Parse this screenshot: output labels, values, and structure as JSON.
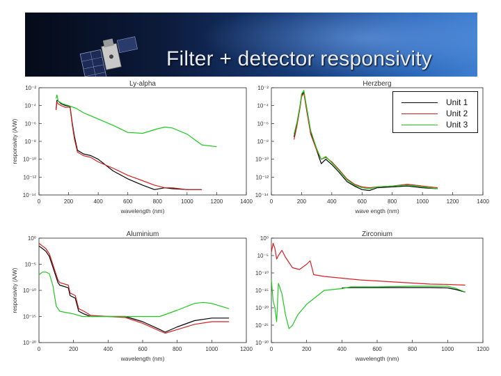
{
  "slide": {
    "title": "Filter + detector responsivity"
  },
  "colors": {
    "unit1": "#000000",
    "unit2": "#d42020",
    "unit3": "#1ec81e"
  },
  "legend": [
    {
      "label": "Unit 1",
      "color": "#000000"
    },
    {
      "label": "Unit 2",
      "color": "#d42020"
    },
    {
      "label": "Unit 3",
      "color": "#1ec81e"
    }
  ],
  "chart_data": [
    {
      "type": "line",
      "title": "Ly-alpha",
      "xlabel": "wavelength (nm)",
      "ylabel": "responsivity (A/W)",
      "xlim": [
        0,
        1400
      ],
      "ylim": [
        -14,
        -2
      ],
      "yscale": "log10",
      "xticks": [
        "0",
        "200",
        "400",
        "600",
        "800",
        "1000",
        "1200",
        "1400"
      ],
      "yticks": [
        "10⁻²",
        "10⁻⁴",
        "10⁻⁶",
        "10⁻⁸",
        "10⁻¹⁰",
        "10⁻¹²",
        "10⁻¹⁴"
      ],
      "series": [
        {
          "name": "Unit 1",
          "x": [
            115,
            121,
            130,
            150,
            180,
            210,
            225,
            240,
            260,
            300,
            350,
            400,
            500,
            600,
            700,
            780,
            850,
            900,
            1000,
            1100
          ],
          "log10": [
            -4.4,
            -3.4,
            -3.5,
            -3.8,
            -4.0,
            -4.1,
            -6.0,
            -7.5,
            -9.0,
            -9.4,
            -9.6,
            -10.0,
            -11.3,
            -12.2,
            -12.9,
            -13.4,
            -13.2,
            -13.3,
            -13.4,
            -13.4
          ]
        },
        {
          "name": "Unit 2",
          "x": [
            115,
            121,
            130,
            150,
            180,
            210,
            225,
            240,
            260,
            300,
            350,
            400,
            500,
            600,
            700,
            780,
            850,
            900,
            1000,
            1100
          ],
          "log10": [
            -4.5,
            -3.6,
            -3.8,
            -4.0,
            -4.2,
            -4.2,
            -6.2,
            -7.8,
            -9.2,
            -9.6,
            -9.8,
            -10.3,
            -11.0,
            -11.8,
            -12.4,
            -12.9,
            -13.2,
            -13.2,
            -13.4,
            -13.4
          ]
        },
        {
          "name": "Unit 3",
          "x": [
            115,
            121,
            130,
            160,
            200,
            250,
            300,
            400,
            500,
            600,
            700,
            800,
            850,
            900,
            1000,
            1050,
            1100,
            1200
          ],
          "log10": [
            -3.2,
            -2.8,
            -3.5,
            -3.8,
            -4.0,
            -4.3,
            -4.8,
            -5.5,
            -6.2,
            -7.0,
            -7.1,
            -6.6,
            -6.4,
            -6.5,
            -7.2,
            -7.8,
            -8.4,
            -8.6
          ]
        }
      ]
    },
    {
      "type": "line",
      "title": "Herzberg",
      "xlabel": "wave ength (nm)",
      "ylabel": "",
      "xlim": [
        0,
        1400
      ],
      "ylim": [
        -14,
        -2
      ],
      "yscale": "log10",
      "xticks": [
        "0",
        "200",
        "400",
        "600",
        "800",
        "1000",
        "1200",
        "1400"
      ],
      "yticks": [
        "10⁻²",
        "10⁻⁴",
        "10⁻⁶",
        "10⁻⁸",
        "10⁻¹⁰",
        "10⁻¹²",
        "10⁻¹⁴"
      ],
      "series": [
        {
          "name": "Unit 1",
          "x": [
            150,
            170,
            190,
            200,
            215,
            230,
            260,
            300,
            330,
            360,
            400,
            450,
            500,
            550,
            600,
            650,
            700,
            800,
            900,
            1000,
            1100
          ],
          "log10": [
            -7.5,
            -6.0,
            -4.0,
            -2.8,
            -2.5,
            -4.0,
            -7.0,
            -9.0,
            -10.5,
            -10.0,
            -10.6,
            -11.5,
            -12.5,
            -13.0,
            -13.4,
            -13.5,
            -13.2,
            -13.1,
            -13.0,
            -13.2,
            -13.3
          ]
        },
        {
          "name": "Unit 2",
          "x": [
            150,
            170,
            190,
            200,
            215,
            230,
            260,
            300,
            330,
            360,
            400,
            450,
            500,
            550,
            600,
            650,
            700,
            800,
            900,
            1000,
            1100
          ],
          "log10": [
            -7.8,
            -6.2,
            -4.2,
            -3.0,
            -2.6,
            -4.2,
            -7.2,
            -9.0,
            -10.0,
            -9.8,
            -10.3,
            -11.2,
            -12.2,
            -12.8,
            -13.1,
            -13.2,
            -13.1,
            -13.0,
            -12.8,
            -13.0,
            -13.2
          ]
        },
        {
          "name": "Unit 3",
          "x": [
            150,
            170,
            190,
            200,
            215,
            230,
            260,
            300,
            330,
            360,
            400,
            450,
            500,
            550,
            600,
            650,
            700,
            800,
            900,
            1000,
            1100
          ],
          "log10": [
            -7.2,
            -5.8,
            -3.9,
            -2.7,
            -2.3,
            -3.8,
            -6.8,
            -8.8,
            -10.0,
            -9.7,
            -10.4,
            -11.3,
            -12.3,
            -12.9,
            -13.2,
            -13.3,
            -13.1,
            -13.0,
            -12.9,
            -13.1,
            -13.3
          ]
        }
      ]
    },
    {
      "type": "line",
      "title": "Aluminium",
      "xlabel": "wavelength (nm)",
      "ylabel": "responsivity (A/W)",
      "xlim": [
        0,
        1200
      ],
      "ylim": [
        -20,
        0
      ],
      "yscale": "log10",
      "xticks": [
        "0",
        "200",
        "400",
        "600",
        "800",
        "1000",
        "1200"
      ],
      "yticks": [
        "10⁰",
        "10⁻⁵",
        "10⁻¹⁰",
        "10⁻¹⁵",
        "10⁻²⁰"
      ],
      "series": [
        {
          "name": "Unit 1",
          "x": [
            0,
            20,
            40,
            60,
            80,
            100,
            110,
            120,
            170,
            180,
            210,
            230,
            260,
            300,
            400,
            500,
            600,
            700,
            730,
            800,
            900,
            1000,
            1100
          ],
          "log10": [
            -1.5,
            -2.0,
            -2.5,
            -3.5,
            -5.5,
            -7.5,
            -8.5,
            -9.0,
            -9.5,
            -11.0,
            -11.5,
            -14.0,
            -14.5,
            -15.0,
            -15.0,
            -15.0,
            -16.0,
            -17.5,
            -18.0,
            -17.0,
            -15.8,
            -15.3,
            -15.3
          ]
        },
        {
          "name": "Unit 2",
          "x": [
            0,
            20,
            40,
            60,
            80,
            100,
            110,
            120,
            170,
            180,
            210,
            230,
            260,
            300,
            400,
            500,
            600,
            700,
            730,
            800,
            900,
            1000,
            1100
          ],
          "log10": [
            -1.0,
            -1.5,
            -2.0,
            -3.0,
            -5.0,
            -7.0,
            -8.0,
            -8.5,
            -9.0,
            -10.5,
            -11.0,
            -13.5,
            -14.0,
            -14.8,
            -15.0,
            -15.2,
            -16.3,
            -17.8,
            -18.2,
            -17.5,
            -16.5,
            -16.0,
            -16.0
          ]
        },
        {
          "name": "Unit 3",
          "x": [
            0,
            20,
            40,
            60,
            80,
            100,
            120,
            150,
            200,
            250,
            300,
            400,
            500,
            600,
            700,
            800,
            900,
            950,
            1000,
            1100
          ],
          "log10": [
            -7.0,
            -6.5,
            -6.5,
            -6.8,
            -9.0,
            -13.0,
            -14.0,
            -14.2,
            -14.5,
            -15.0,
            -15.0,
            -15.0,
            -15.0,
            -15.0,
            -15.0,
            -13.8,
            -12.5,
            -12.3,
            -12.5,
            -13.5
          ]
        }
      ]
    },
    {
      "type": "line",
      "title": "Zirconium",
      "xlabel": "wavelength (nm)",
      "ylabel": "",
      "xlim": [
        0,
        1200
      ],
      "ylim": [
        -30,
        0
      ],
      "yscale": "log10",
      "xticks": [
        "0",
        "200",
        "400",
        "600",
        "800",
        "1000",
        "1200"
      ],
      "yticks": [
        "10⁰",
        "10⁻⁵",
        "10⁻¹⁰",
        "10⁻¹⁵",
        "10⁻²⁰",
        "10⁻²⁵",
        "10⁻³⁰"
      ],
      "series": [
        {
          "name": "Unit 1",
          "x": [
            400,
            450,
            500,
            600,
            700,
            800,
            900,
            1000,
            1050,
            1100
          ],
          "log10": [
            -14.3,
            -14.2,
            -14.2,
            -14.2,
            -14.2,
            -14.2,
            -14.2,
            -14.3,
            -14.8,
            -15.5
          ]
        },
        {
          "name": "Unit 2",
          "x": [
            0,
            10,
            20,
            30,
            40,
            60,
            80,
            120,
            160,
            200,
            220,
            230,
            240,
            300,
            400,
            500,
            600,
            700,
            800,
            900,
            1000,
            1100
          ],
          "log10": [
            -4.0,
            -1.5,
            -3.0,
            -6.0,
            -5.0,
            -3.5,
            -5.5,
            -8.5,
            -9.0,
            -7.5,
            -6.5,
            -8.5,
            -10.5,
            -11.0,
            -11.5,
            -12.0,
            -12.3,
            -12.6,
            -12.9,
            -13.2,
            -13.3,
            -13.5
          ]
        },
        {
          "name": "Unit 3",
          "x": [
            0,
            10,
            20,
            30,
            40,
            60,
            80,
            100,
            120,
            150,
            200,
            250,
            300,
            400,
            450,
            600,
            800,
            1000,
            1050,
            1100
          ],
          "log10": [
            -12.0,
            -18.0,
            -20.0,
            -24.0,
            -13.0,
            -16.0,
            -22.0,
            -26.0,
            -25.0,
            -22.0,
            -19.0,
            -17.0,
            -15.0,
            -14.5,
            -14.0,
            -14.0,
            -13.8,
            -13.8,
            -14.5,
            -15.5
          ]
        }
      ]
    }
  ]
}
